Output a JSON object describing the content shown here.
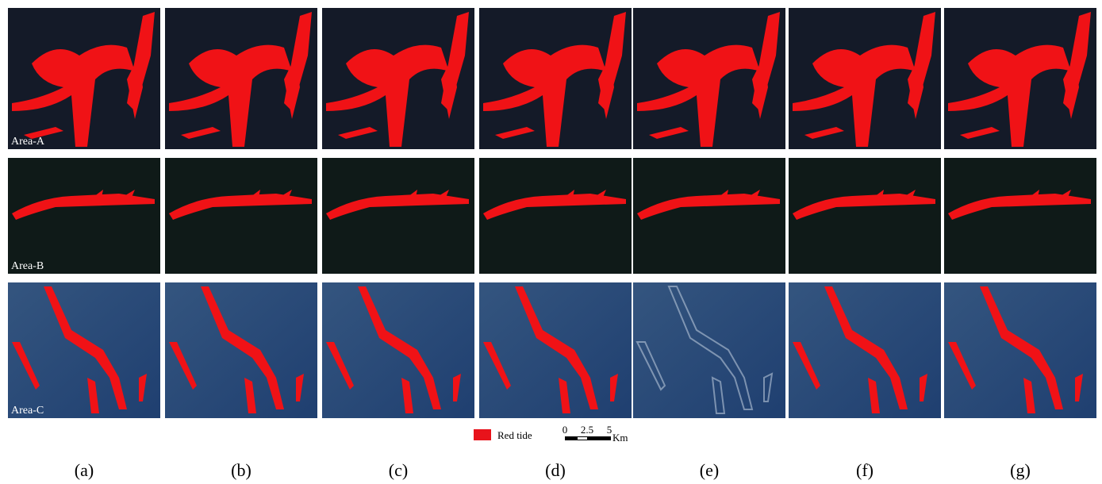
{
  "rows": [
    {
      "label": "Area-A"
    },
    {
      "label": "Area-B"
    },
    {
      "label": "Area-C"
    }
  ],
  "legend": {
    "label": "Red tide"
  },
  "scale_bar": {
    "ticks": [
      "0",
      "2.5",
      "5"
    ],
    "unit": "Km"
  },
  "panel_labels": [
    "(a)",
    "(b)",
    "(c)",
    "(d)",
    "(e)",
    "(f)",
    "(g)"
  ]
}
